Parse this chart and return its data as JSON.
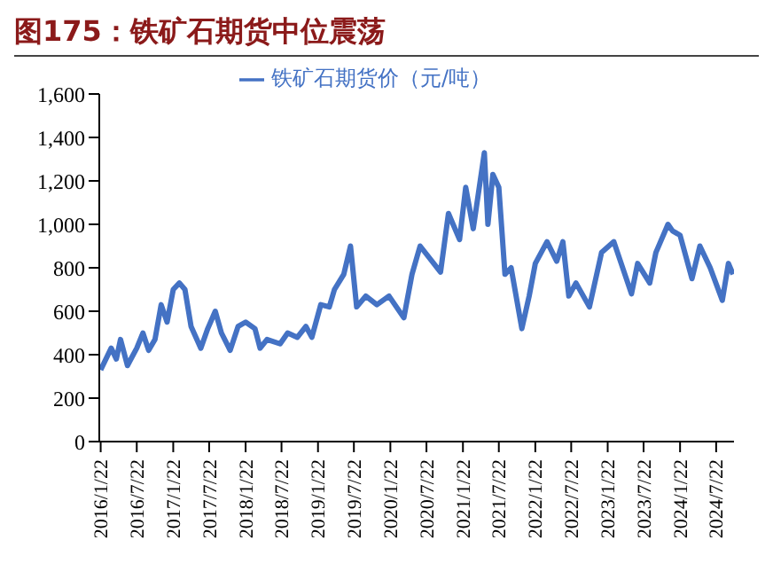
{
  "chart_data": {
    "type": "line",
    "title": "图175：铁矿石期货中位震荡",
    "x": [
      "2016-01-22",
      "2016-03-15",
      "2016-04-10",
      "2016-05-01",
      "2016-06-05",
      "2016-07-22",
      "2016-08-22",
      "2016-09-20",
      "2016-10-22",
      "2016-11-22",
      "2016-12-22",
      "2017-01-22",
      "2017-02-22",
      "2017-03-22",
      "2017-04-22",
      "2017-06-10",
      "2017-07-15",
      "2017-08-22",
      "2017-09-22",
      "2017-11-05",
      "2017-12-15",
      "2018-01-22",
      "2018-03-10",
      "2018-04-05",
      "2018-05-10",
      "2018-07-15",
      "2018-08-22",
      "2018-10-10",
      "2018-11-22",
      "2018-12-22",
      "2019-02-05",
      "2019-03-20",
      "2019-04-15",
      "2019-06-01",
      "2019-07-05",
      "2019-08-05",
      "2019-09-20",
      "2019-11-15",
      "2020-01-15",
      "2020-03-30",
      "2020-05-10",
      "2020-06-20",
      "2020-10-01",
      "2020-11-10",
      "2021-01-05",
      "2021-02-05",
      "2021-03-15",
      "2021-05-10",
      "2021-05-28",
      "2021-06-22",
      "2021-07-22",
      "2021-08-22",
      "2021-09-22",
      "2021-11-15",
      "2021-12-22",
      "2022-01-22",
      "2022-03-22",
      "2022-05-10",
      "2022-06-10",
      "2022-07-10",
      "2022-08-15",
      "2022-10-22",
      "2022-12-22",
      "2023-02-22",
      "2023-05-22",
      "2023-06-22",
      "2023-08-22",
      "2023-09-22",
      "2023-11-22",
      "2023-12-15",
      "2024-01-22",
      "2024-03-22",
      "2024-05-01",
      "2024-06-22",
      "2024-08-22",
      "2024-09-22",
      "2024-10-15"
    ],
    "series": [
      {
        "name": "铁矿石期货价（元/吨）",
        "color": "#4472c4",
        "values": [
          330,
          430,
          380,
          470,
          350,
          430,
          500,
          420,
          470,
          630,
          550,
          700,
          730,
          700,
          530,
          430,
          520,
          600,
          500,
          420,
          530,
          550,
          520,
          430,
          470,
          450,
          500,
          480,
          530,
          480,
          630,
          620,
          700,
          770,
          900,
          620,
          670,
          630,
          670,
          570,
          770,
          900,
          780,
          1050,
          930,
          1170,
          980,
          1330,
          1000,
          1230,
          1170,
          770,
          800,
          520,
          670,
          820,
          920,
          830,
          920,
          670,
          730,
          620,
          870,
          920,
          680,
          820,
          730,
          870,
          1000,
          970,
          950,
          750,
          900,
          800,
          650,
          820,
          770
        ]
      }
    ],
    "xlim": [
      "2016-01-15",
      "2024-10-20"
    ],
    "xticks": [
      {
        "value": "2016-01-22",
        "label": "2016/1/22"
      },
      {
        "value": "2016-07-22",
        "label": "2016/7/22"
      },
      {
        "value": "2017-01-22",
        "label": "2017/1/22"
      },
      {
        "value": "2017-07-22",
        "label": "2017/7/22"
      },
      {
        "value": "2018-01-22",
        "label": "2018/1/22"
      },
      {
        "value": "2018-07-22",
        "label": "2018/7/22"
      },
      {
        "value": "2019-01-22",
        "label": "2019/1/22"
      },
      {
        "value": "2019-07-22",
        "label": "2019/7/22"
      },
      {
        "value": "2020-01-22",
        "label": "2020/1/22"
      },
      {
        "value": "2020-07-22",
        "label": "2020/7/22"
      },
      {
        "value": "2021-01-22",
        "label": "2021/1/22"
      },
      {
        "value": "2021-07-22",
        "label": "2021/7/22"
      },
      {
        "value": "2022-01-22",
        "label": "2022/1/22"
      },
      {
        "value": "2022-07-22",
        "label": "2022/7/22"
      },
      {
        "value": "2023-01-22",
        "label": "2023/1/22"
      },
      {
        "value": "2023-07-22",
        "label": "2023/7/22"
      },
      {
        "value": "2024-01-22",
        "label": "2024/1/22"
      },
      {
        "value": "2024-07-22",
        "label": "2024/7/22"
      }
    ],
    "ylim": [
      0,
      1600
    ],
    "yticks": [
      0,
      200,
      400,
      600,
      800,
      {
        "value": 1000,
        "label": "1,000"
      },
      {
        "value": 1200,
        "label": "1,200"
      },
      {
        "value": 1400,
        "label": "1,400"
      },
      {
        "value": 1600,
        "label": "1,600"
      }
    ],
    "legend": "top",
    "marker": "none",
    "line_style": "solid"
  }
}
